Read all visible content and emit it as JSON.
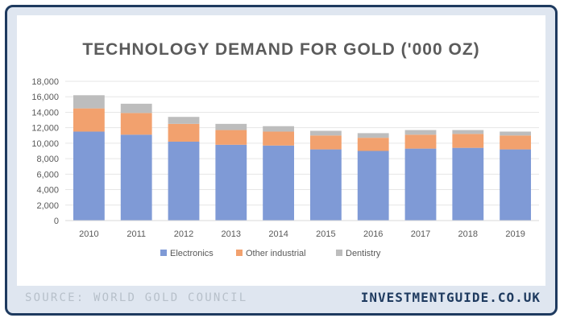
{
  "footer": {
    "source": "SOURCE: WORLD GOLD COUNCIL",
    "brand": "INVESTMENTGUIDE.CO.UK"
  },
  "colors": {
    "frame_border": "#1e3a5f",
    "frame_background": "#dfe6f0",
    "title": "#5b5b5b",
    "grid": "#e6e6e6"
  },
  "chart_data": {
    "type": "bar",
    "stacked": true,
    "title": "TECHNOLOGY DEMAND FOR GOLD ('000 OZ)",
    "xlabel": "",
    "ylabel": "",
    "ylim": [
      0,
      18000
    ],
    "yticks": [
      "0",
      "2,000",
      "4,000",
      "6,000",
      "8,000",
      "10,000",
      "12,000",
      "14,000",
      "16,000",
      "18,000"
    ],
    "grid": true,
    "legend_position": "bottom",
    "categories": [
      "2010",
      "2011",
      "2012",
      "2013",
      "2014",
      "2015",
      "2016",
      "2017",
      "2018",
      "2019"
    ],
    "series": [
      {
        "name": "Electronics",
        "color": "#7f9ad6",
        "values": [
          11500,
          11100,
          10200,
          9800,
          9700,
          9200,
          9000,
          9300,
          9400,
          9200
        ]
      },
      {
        "name": "Other industrial",
        "color": "#f2a16e",
        "values": [
          3000,
          2800,
          2300,
          1900,
          1800,
          1800,
          1700,
          1800,
          1800,
          1800
        ]
      },
      {
        "name": "Dentistry",
        "color": "#bdbdbd",
        "values": [
          1700,
          1200,
          900,
          800,
          700,
          600,
          600,
          600,
          500,
          500
        ]
      }
    ]
  }
}
